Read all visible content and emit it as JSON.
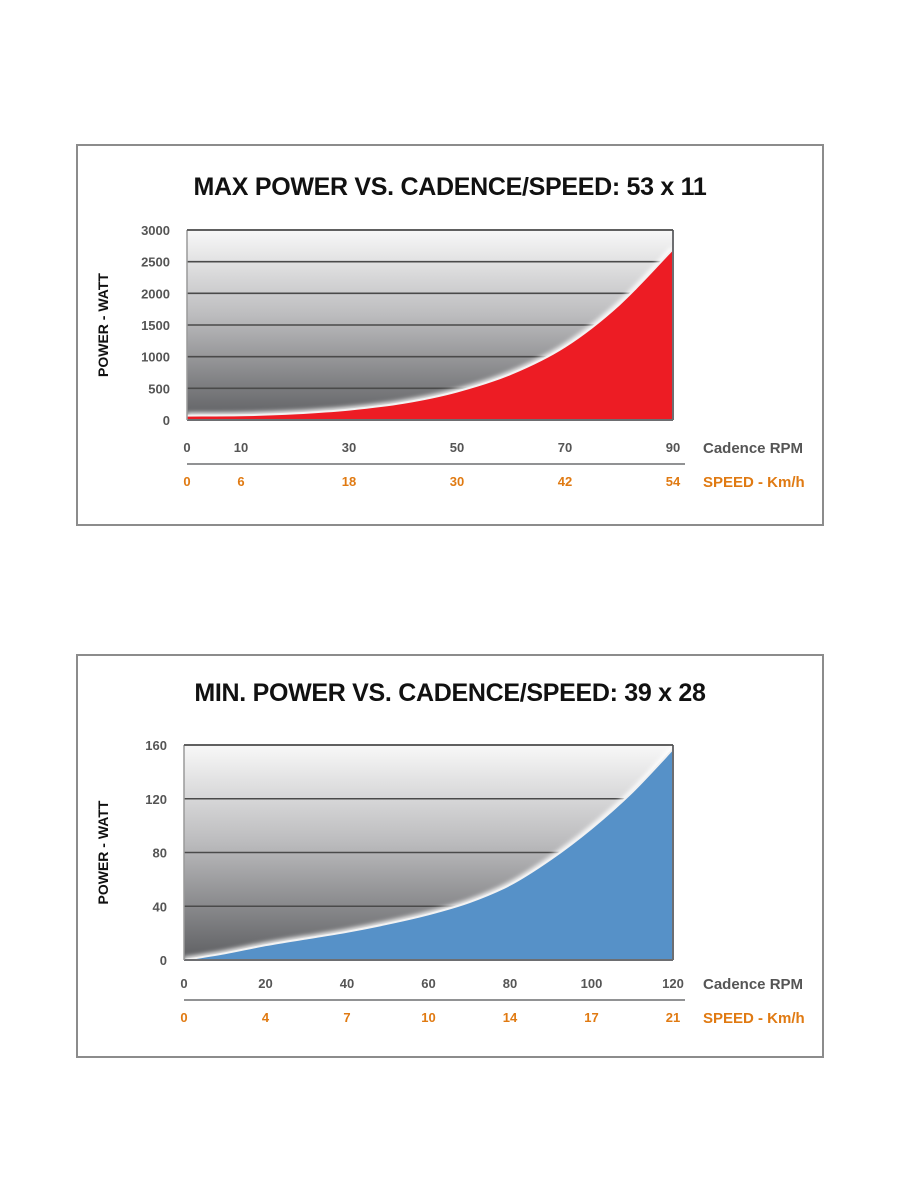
{
  "chart_data": [
    {
      "type": "area",
      "title": "MAX POWER VS. CADENCE/SPEED: 53 x 11",
      "ylabel": "POWER - WATT",
      "xlabel": "Cadence RPM",
      "x2label": "SPEED - Km/h",
      "ylim": [
        0,
        3000
      ],
      "xlim": [
        0,
        90
      ],
      "yticks": [
        "3000",
        "2500",
        "2000",
        "1500",
        "1000",
        "500",
        "0"
      ],
      "ytick_values": [
        3000,
        2500,
        2000,
        1500,
        1000,
        500,
        0
      ],
      "xticks": [
        "0",
        "10",
        "30",
        "50",
        "70",
        "90"
      ],
      "xtick_values": [
        0,
        10,
        30,
        50,
        70,
        90
      ],
      "x2ticks": [
        "0",
        "6",
        "18",
        "30",
        "42",
        "54"
      ],
      "grid": true,
      "fill_color": "#ed1c24",
      "series": [
        {
          "x": [
            0,
            10,
            20,
            30,
            40,
            50,
            60,
            70,
            80,
            90
          ],
          "values": [
            70,
            75,
            105,
            165,
            270,
            450,
            730,
            1160,
            1820,
            2700
          ]
        }
      ]
    },
    {
      "type": "area",
      "title": "MIN. POWER VS. CADENCE/SPEED: 39 x 28",
      "ylabel": "POWER - WATT",
      "xlabel": "Cadence RPM",
      "x2label": "SPEED - Km/h",
      "ylim": [
        0,
        160
      ],
      "xlim": [
        0,
        120
      ],
      "yticks": [
        "160",
        "120",
        "80",
        "40",
        "0"
      ],
      "ytick_values": [
        160,
        120,
        80,
        40,
        0
      ],
      "xticks": [
        "0",
        "20",
        "40",
        "60",
        "80",
        "100",
        "120"
      ],
      "xtick_values": [
        0,
        20,
        40,
        60,
        80,
        100,
        120
      ],
      "x2ticks": [
        "0",
        "4",
        "7",
        "10",
        "14",
        "17",
        "21"
      ],
      "grid": true,
      "fill_color": "#5691c8",
      "series": [
        {
          "x": [
            0,
            10,
            20,
            30,
            40,
            50,
            60,
            70,
            80,
            90,
            100,
            110,
            120
          ],
          "values": [
            0,
            5,
            11,
            16,
            21,
            27,
            34,
            43,
            56,
            75,
            98,
            125,
            157
          ]
        }
      ]
    }
  ]
}
